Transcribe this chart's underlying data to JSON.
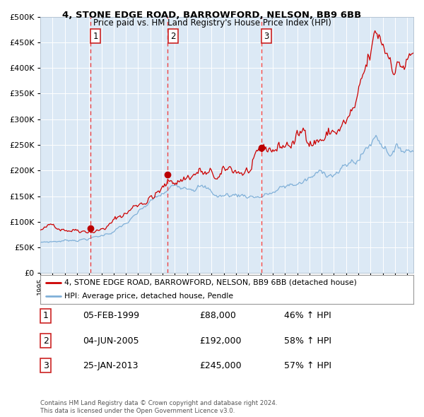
{
  "title1": "4, STONE EDGE ROAD, BARROWFORD, NELSON, BB9 6BB",
  "title2": "Price paid vs. HM Land Registry's House Price Index (HPI)",
  "ylim": [
    0,
    500000
  ],
  "yticks": [
    0,
    50000,
    100000,
    150000,
    200000,
    250000,
    300000,
    350000,
    400000,
    450000,
    500000
  ],
  "plot_bg_color": "#dce9f5",
  "red_line_color": "#cc0000",
  "blue_line_color": "#80b0d8",
  "sale_marker_color": "#bb0000",
  "vline_color": "#ee4444",
  "sale1_date": 1999.09,
  "sale1_price": 88000,
  "sale2_date": 2005.42,
  "sale2_price": 192000,
  "sale3_date": 2013.07,
  "sale3_price": 245000,
  "legend_red_label": "4, STONE EDGE ROAD, BARROWFORD, NELSON, BB9 6BB (detached house)",
  "legend_blue_label": "HPI: Average price, detached house, Pendle",
  "table_rows": [
    [
      "1",
      "05-FEB-1999",
      "£88,000",
      "46% ↑ HPI"
    ],
    [
      "2",
      "04-JUN-2005",
      "£192,000",
      "58% ↑ HPI"
    ],
    [
      "3",
      "25-JAN-2013",
      "£245,000",
      "57% ↑ HPI"
    ]
  ],
  "footer1": "Contains HM Land Registry data © Crown copyright and database right 2024.",
  "footer2": "This data is licensed under the Open Government Licence v3.0."
}
